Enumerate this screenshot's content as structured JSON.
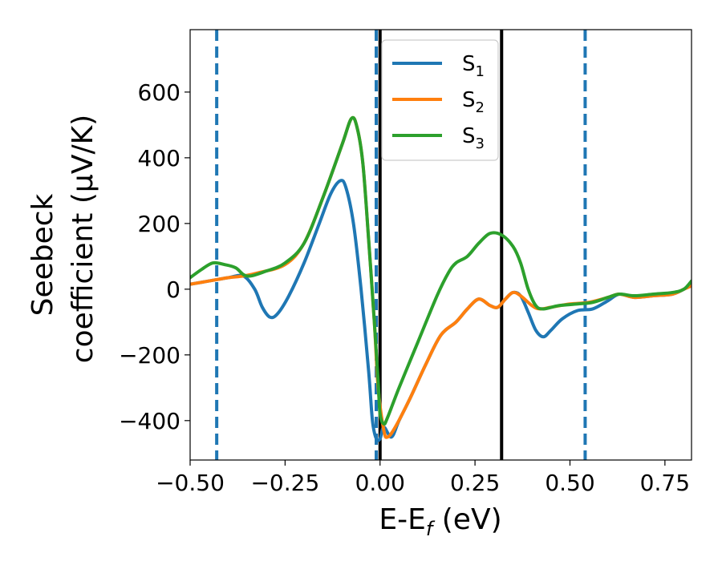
{
  "chart_data": {
    "type": "line",
    "xlabel": "E-E",
    "xlabel_sub": "f",
    "xlabel_unit": " (eV)",
    "ylabel_line1": "Seebeck",
    "ylabel_line2": "coefficient  (μV/K)",
    "xlim": [
      -0.5,
      0.82
    ],
    "ylim": [
      -520,
      790
    ],
    "xticks": [
      -0.5,
      -0.25,
      0.0,
      0.25,
      0.5,
      0.75
    ],
    "xtick_labels": [
      "−0.50",
      "−0.25",
      "0.00",
      "0.25",
      "0.50",
      "0.75"
    ],
    "yticks": [
      -400,
      -200,
      0,
      200,
      400,
      600
    ],
    "ytick_labels": [
      "−400",
      "−200",
      "0",
      "200",
      "400",
      "600"
    ],
    "legend_position": "top-center",
    "vlines": [
      {
        "x": -0.43,
        "style": "dashed",
        "color": "#1f77b4"
      },
      {
        "x": -0.01,
        "style": "dashed",
        "color": "#1f77b4"
      },
      {
        "x": 0.0,
        "style": "solid",
        "color": "#000000"
      },
      {
        "x": 0.32,
        "style": "solid",
        "color": "#000000"
      },
      {
        "x": 0.54,
        "style": "dashed",
        "color": "#1f77b4"
      }
    ],
    "series": [
      {
        "name": "S",
        "sub": "1",
        "color": "#1f77b4",
        "points": [
          [
            -0.5,
            15
          ],
          [
            -0.45,
            25
          ],
          [
            -0.4,
            35
          ],
          [
            -0.36,
            40
          ],
          [
            -0.33,
            0
          ],
          [
            -0.31,
            -55
          ],
          [
            -0.29,
            -85
          ],
          [
            -0.27,
            -75
          ],
          [
            -0.24,
            -20
          ],
          [
            -0.2,
            80
          ],
          [
            -0.16,
            200
          ],
          [
            -0.13,
            290
          ],
          [
            -0.105,
            330
          ],
          [
            -0.09,
            310
          ],
          [
            -0.07,
            200
          ],
          [
            -0.05,
            0
          ],
          [
            -0.03,
            -250
          ],
          [
            -0.02,
            -400
          ],
          [
            -0.01,
            -455
          ],
          [
            0.0,
            -455
          ],
          [
            0.01,
            -420
          ],
          [
            0.03,
            -450
          ],
          [
            0.05,
            -400
          ],
          [
            0.08,
            -330
          ],
          [
            0.12,
            -230
          ],
          [
            0.16,
            -140
          ],
          [
            0.2,
            -100
          ],
          [
            0.23,
            -60
          ],
          [
            0.26,
            -30
          ],
          [
            0.29,
            -50
          ],
          [
            0.31,
            -55
          ],
          [
            0.33,
            -30
          ],
          [
            0.35,
            -10
          ],
          [
            0.37,
            -20
          ],
          [
            0.39,
            -70
          ],
          [
            0.41,
            -125
          ],
          [
            0.43,
            -145
          ],
          [
            0.45,
            -125
          ],
          [
            0.48,
            -90
          ],
          [
            0.52,
            -65
          ],
          [
            0.56,
            -60
          ],
          [
            0.6,
            -35
          ],
          [
            0.63,
            -15
          ],
          [
            0.67,
            -25
          ],
          [
            0.72,
            -20
          ],
          [
            0.77,
            -15
          ],
          [
            0.8,
            0
          ],
          [
            0.82,
            15
          ]
        ]
      },
      {
        "name": "S",
        "sub": "2",
        "color": "#ff7f0e",
        "points": [
          [
            -0.5,
            15
          ],
          [
            -0.45,
            25
          ],
          [
            -0.4,
            35
          ],
          [
            -0.36,
            40
          ],
          [
            -0.32,
            50
          ],
          [
            -0.25,
            75
          ],
          [
            -0.2,
            140
          ],
          [
            -0.15,
            280
          ],
          [
            -0.1,
            440
          ],
          [
            -0.075,
            520
          ],
          [
            -0.06,
            490
          ],
          [
            -0.045,
            380
          ],
          [
            -0.03,
            150
          ],
          [
            -0.015,
            -100
          ],
          [
            -0.005,
            -300
          ],
          [
            0.01,
            -430
          ],
          [
            0.02,
            -450
          ],
          [
            0.04,
            -420
          ],
          [
            0.08,
            -330
          ],
          [
            0.12,
            -230
          ],
          [
            0.16,
            -140
          ],
          [
            0.2,
            -100
          ],
          [
            0.23,
            -60
          ],
          [
            0.26,
            -30
          ],
          [
            0.29,
            -50
          ],
          [
            0.31,
            -55
          ],
          [
            0.33,
            -30
          ],
          [
            0.35,
            -10
          ],
          [
            0.37,
            -20
          ],
          [
            0.4,
            -50
          ],
          [
            0.42,
            -60
          ],
          [
            0.45,
            -55
          ],
          [
            0.5,
            -45
          ],
          [
            0.55,
            -40
          ],
          [
            0.6,
            -25
          ],
          [
            0.63,
            -15
          ],
          [
            0.67,
            -25
          ],
          [
            0.72,
            -20
          ],
          [
            0.77,
            -15
          ],
          [
            0.8,
            0
          ],
          [
            0.82,
            10
          ]
        ]
      },
      {
        "name": "S",
        "sub": "3",
        "color": "#2ca02c",
        "points": [
          [
            -0.5,
            35
          ],
          [
            -0.47,
            60
          ],
          [
            -0.44,
            80
          ],
          [
            -0.41,
            75
          ],
          [
            -0.38,
            65
          ],
          [
            -0.35,
            40
          ],
          [
            -0.3,
            55
          ],
          [
            -0.25,
            80
          ],
          [
            -0.2,
            140
          ],
          [
            -0.15,
            280
          ],
          [
            -0.1,
            440
          ],
          [
            -0.075,
            520
          ],
          [
            -0.06,
            490
          ],
          [
            -0.045,
            380
          ],
          [
            -0.03,
            150
          ],
          [
            -0.015,
            -100
          ],
          [
            -0.005,
            -280
          ],
          [
            0.0,
            -380
          ],
          [
            0.01,
            -410
          ],
          [
            0.02,
            -390
          ],
          [
            0.05,
            -300
          ],
          [
            0.1,
            -160
          ],
          [
            0.15,
            -20
          ],
          [
            0.18,
            50
          ],
          [
            0.2,
            80
          ],
          [
            0.23,
            100
          ],
          [
            0.26,
            140
          ],
          [
            0.29,
            170
          ],
          [
            0.32,
            165
          ],
          [
            0.35,
            130
          ],
          [
            0.37,
            80
          ],
          [
            0.39,
            0
          ],
          [
            0.41,
            -50
          ],
          [
            0.43,
            -60
          ],
          [
            0.47,
            -50
          ],
          [
            0.52,
            -45
          ],
          [
            0.56,
            -40
          ],
          [
            0.6,
            -25
          ],
          [
            0.63,
            -15
          ],
          [
            0.67,
            -20
          ],
          [
            0.72,
            -15
          ],
          [
            0.77,
            -10
          ],
          [
            0.8,
            0
          ],
          [
            0.82,
            25
          ]
        ]
      }
    ]
  }
}
